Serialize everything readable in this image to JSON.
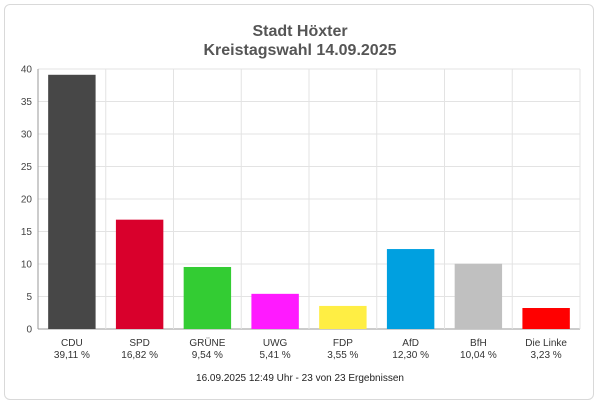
{
  "chart_data": {
    "type": "bar",
    "title": "Stadt Höxter",
    "subtitle": "Kreistagswahl 14.09.2025",
    "categories": [
      "CDU",
      "SPD",
      "GRÜNE",
      "UWG",
      "FDP",
      "AfD",
      "BfH",
      "Die Linke"
    ],
    "value_labels": [
      "39,11 %",
      "16,82 %",
      "9,54 %",
      "5,41 %",
      "3,55 %",
      "12,30 %",
      "10,04 %",
      "3,23 %"
    ],
    "values": [
      39.11,
      16.82,
      9.54,
      5.41,
      3.55,
      12.3,
      10.04,
      3.23
    ],
    "colors": [
      "#474747",
      "#d9002c",
      "#33cc33",
      "#ff1aff",
      "#ffee44",
      "#00a0e0",
      "#c0c0c0",
      "#ff0000"
    ],
    "ylim": [
      0,
      40
    ],
    "yticks": [
      0,
      5,
      10,
      15,
      20,
      25,
      30,
      35,
      40
    ],
    "grid": true,
    "footer": "16.09.2025 12:49 Uhr - 23 von 23 Ergebnissen"
  }
}
